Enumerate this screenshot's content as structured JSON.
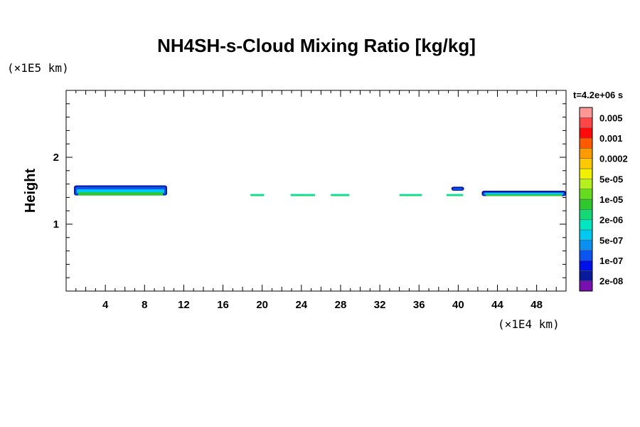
{
  "chart_data": {
    "type": "heatmap",
    "title": "NH4SH-s-Cloud Mixing Ratio [kg/kg]",
    "ylabel": "Height",
    "xlabel": "",
    "x_unit": "(×1E4 km)",
    "y_unit": "(×1E5 km)",
    "time_label": "t=4.2e+06 s",
    "xlim": [
      0,
      51
    ],
    "ylim": [
      0,
      3
    ],
    "x_ticks": [
      4,
      8,
      12,
      16,
      20,
      24,
      28,
      32,
      36,
      40,
      44,
      48
    ],
    "y_ticks": [
      1,
      2
    ],
    "colorbar": {
      "colors": [
        "#7a0fb0",
        "#0a1a9c",
        "#0010e6",
        "#0a55f0",
        "#0a90f0",
        "#00c8f0",
        "#00e6c0",
        "#14d873",
        "#2ec82e",
        "#66dc1e",
        "#b4f01e",
        "#f0f000",
        "#ffc800",
        "#ff9b00",
        "#ff5a00",
        "#ff0a0a",
        "#ff4646",
        "#ff9696"
      ],
      "labels": [
        "2e-08",
        "1e-07",
        "5e-07",
        "2e-06",
        "1e-05",
        "5e-05",
        "0.0002",
        "0.001",
        "0.005"
      ]
    },
    "cloud_patches": [
      {
        "x": [
          0.8,
          10.3
        ],
        "base": 1.43,
        "top": 1.58,
        "level": "upper"
      },
      {
        "x": [
          18.8,
          20.2
        ],
        "base": 1.42,
        "top": 1.45,
        "level": "thin"
      },
      {
        "x": [
          22.9,
          25.4
        ],
        "base": 1.42,
        "top": 1.45,
        "level": "thin"
      },
      {
        "x": [
          27.0,
          28.9
        ],
        "base": 1.42,
        "top": 1.45,
        "level": "thin"
      },
      {
        "x": [
          34.0,
          36.3
        ],
        "base": 1.42,
        "top": 1.45,
        "level": "thin"
      },
      {
        "x": [
          38.8,
          40.5
        ],
        "base": 1.42,
        "top": 1.45,
        "level": "thin"
      },
      {
        "x": [
          39.3,
          40.6
        ],
        "base": 1.5,
        "top": 1.56,
        "level": "blob"
      },
      {
        "x": [
          42.4,
          51.0
        ],
        "base": 1.42,
        "top": 1.5,
        "level": "upper"
      }
    ]
  }
}
